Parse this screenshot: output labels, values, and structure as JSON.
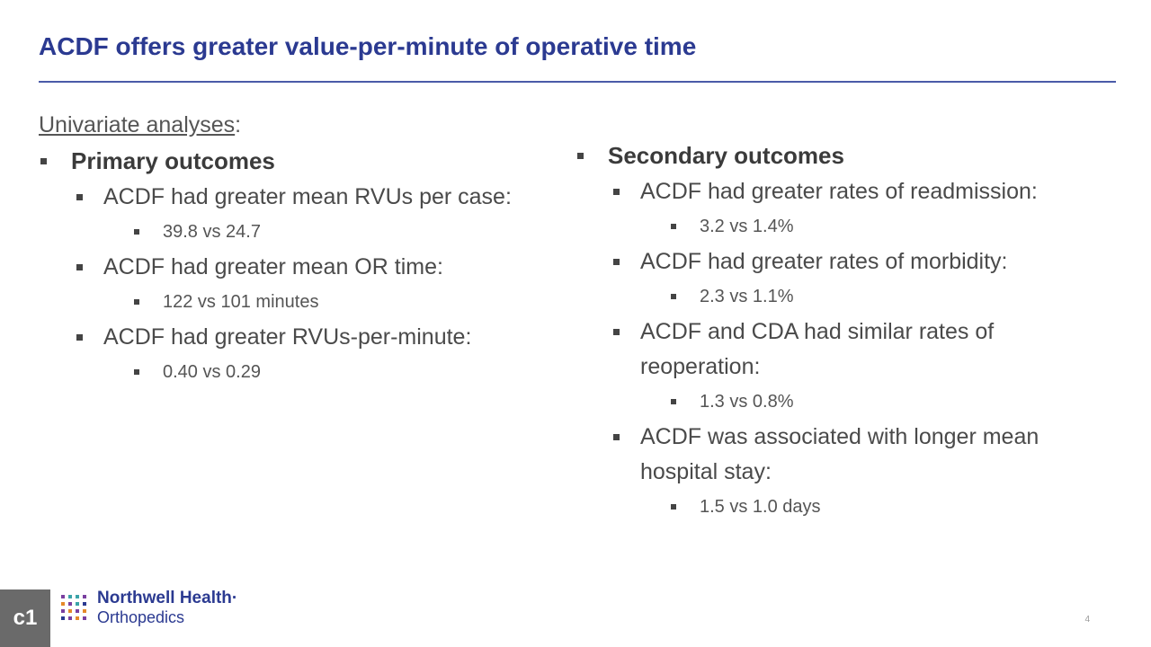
{
  "slide": {
    "title": "ACDF offers greater value-per-minute of operative time"
  },
  "left": {
    "intro_underlined": "Univariate analyses",
    "intro_suffix": ":",
    "heading": "Primary outcomes",
    "items": [
      {
        "text": "ACDF had greater mean RVUs per case:",
        "sub": "39.8 vs 24.7"
      },
      {
        "text": "ACDF had greater mean OR time:",
        "sub": "122 vs 101 minutes"
      },
      {
        "text": "ACDF had greater RVUs-per-minute:",
        "sub": "0.40 vs 0.29"
      }
    ]
  },
  "right": {
    "heading": "Secondary outcomes",
    "items": [
      {
        "text": "ACDF had greater rates of readmission:",
        "sub": "3.2 vs 1.4%"
      },
      {
        "text": "ACDF had greater rates of morbidity:",
        "sub": "2.3 vs 1.1%"
      },
      {
        "text": "ACDF and CDA had similar rates of reoperation:",
        "sub": "1.3 vs 0.8%"
      },
      {
        "text": "ACDF was associated with longer mean hospital stay:",
        "sub": "1.5 vs 1.0 days"
      }
    ]
  },
  "footer": {
    "corner_label": "c1",
    "logo_name": "Northwell Health",
    "logo_trademark": "·",
    "logo_sub": "Orthopedics",
    "page_number": "4",
    "logo_icon": "northwell-dots-icon",
    "colors": {
      "brand": "#2b3a91",
      "accent_purple": "#7a3fa0",
      "accent_orange": "#e58a2a",
      "accent_teal": "#3aa3a8"
    }
  }
}
